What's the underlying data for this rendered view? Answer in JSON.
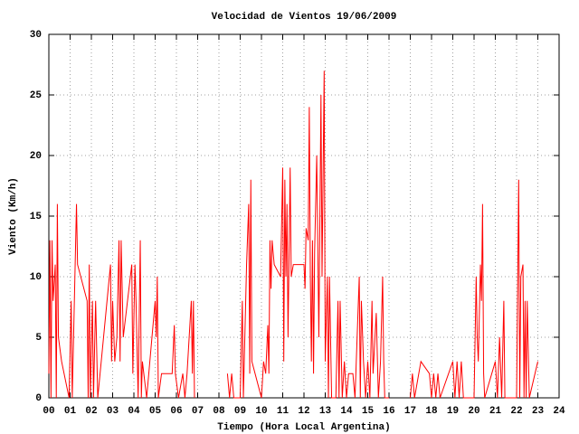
{
  "chart_data": {
    "type": "line",
    "title": "Velocidad de Vientos 19/06/2009",
    "x_label": "Tiempo (Hora Local Argentina)",
    "y_label": "Viento (Km/h)",
    "xlim": [
      0,
      24
    ],
    "ylim": [
      0,
      30
    ],
    "xticks": [
      {
        "value": 0,
        "label": "00"
      },
      {
        "value": 1,
        "label": "01"
      },
      {
        "value": 2,
        "label": "02"
      },
      {
        "value": 3,
        "label": "03"
      },
      {
        "value": 4,
        "label": "04"
      },
      {
        "value": 5,
        "label": "05"
      },
      {
        "value": 6,
        "label": "06"
      },
      {
        "value": 7,
        "label": "07"
      },
      {
        "value": 8,
        "label": "08"
      },
      {
        "value": 9,
        "label": "09"
      },
      10,
      11,
      12,
      13,
      14,
      15,
      16,
      17,
      18,
      19,
      20,
      21,
      22,
      23,
      24
    ],
    "yticks": [
      0,
      5,
      10,
      15,
      20,
      25,
      30
    ],
    "grid": true,
    "x": [
      0,
      0.05,
      0.1,
      0.15,
      0.2,
      0.3,
      0.35,
      0.4,
      0.45,
      0.6,
      0.95,
      1.05,
      1.1,
      1.2,
      1.3,
      1.35,
      1.8,
      1.85,
      1.9,
      1.95,
      2.05,
      2.1,
      2.2,
      2.3,
      2.9,
      2.95,
      3.0,
      3.1,
      3.2,
      3.3,
      3.35,
      3.4,
      3.5,
      3.9,
      3.95,
      4.05,
      4.1,
      4.2,
      4.3,
      4.35,
      4.4,
      4.6,
      5.0,
      5.05,
      5.1,
      5.15,
      5.3,
      5.8,
      5.9,
      5.95,
      6.1,
      6.3,
      6.4,
      6.5,
      6.7,
      6.75,
      6.8,
      6.85,
      7.5,
      8.4,
      8.5,
      8.6,
      8.7,
      9.0,
      9.1,
      9.15,
      9.3,
      9.4,
      9.45,
      9.5,
      9.55,
      10.0,
      10.1,
      10.2,
      10.3,
      10.35,
      10.4,
      10.45,
      10.5,
      10.6,
      10.9,
      11.0,
      11.05,
      11.1,
      11.15,
      11.2,
      11.25,
      11.35,
      11.4,
      11.5,
      12.0,
      12.05,
      12.1,
      12.2,
      12.25,
      12.3,
      12.35,
      12.4,
      12.45,
      12.5,
      12.6,
      12.7,
      12.8,
      12.85,
      12.95,
      13.0,
      13.1,
      13.15,
      13.2,
      13.3,
      13.5,
      13.6,
      13.65,
      13.7,
      13.8,
      13.9,
      14.0,
      14.1,
      14.3,
      14.4,
      14.6,
      14.65,
      14.7,
      14.8,
      14.9,
      15.0,
      15.1,
      15.2,
      15.25,
      15.4,
      15.5,
      15.6,
      15.7,
      15.75,
      15.8,
      16.0,
      16.5,
      17.0,
      17.1,
      17.2,
      17.5,
      17.9,
      18.0,
      18.1,
      18.2,
      18.3,
      18.4,
      19.0,
      19.1,
      19.2,
      19.3,
      19.4,
      19.5,
      20.0,
      20.1,
      20.15,
      20.2,
      20.3,
      20.35,
      20.4,
      20.45,
      20.5,
      21.0,
      21.1,
      21.2,
      21.3,
      21.4,
      21.45,
      21.5,
      22.0,
      22.1,
      22.15,
      22.2,
      22.3,
      22.35,
      22.4,
      22.45,
      22.5,
      22.6,
      23.0
    ],
    "series": [
      {
        "color": "#ff0000",
        "values": [
          2,
          13,
          0,
          13,
          8,
          11,
          0,
          16,
          5,
          3,
          0,
          8,
          0,
          8,
          16,
          11,
          8,
          0,
          11,
          0,
          8,
          0,
          8,
          0,
          11,
          3,
          8,
          3,
          5,
          13,
          3,
          13,
          5,
          11,
          2,
          11,
          8,
          0,
          13,
          0,
          3,
          0,
          8,
          5,
          10,
          0,
          2,
          2,
          6,
          2,
          0,
          2,
          0,
          2,
          8,
          2,
          8,
          0,
          null,
          2,
          0,
          2,
          0,
          0,
          8,
          0,
          11,
          16,
          2,
          18,
          3,
          0,
          3,
          2,
          6,
          2,
          13,
          9,
          13,
          11,
          10,
          19,
          3,
          18,
          10,
          16,
          5,
          19,
          10,
          11,
          11,
          9,
          14,
          13,
          24,
          10,
          3,
          13,
          2,
          12,
          20,
          5,
          25,
          10,
          27,
          3,
          10,
          0,
          10,
          0,
          0,
          8,
          0,
          8,
          0,
          3,
          0,
          2,
          2,
          0,
          10,
          0,
          8,
          3,
          0,
          3,
          0,
          8,
          2,
          7,
          0,
          3,
          10,
          3,
          0,
          0,
          null,
          0,
          2,
          0,
          3,
          2,
          0,
          2,
          0,
          2,
          0,
          3,
          0,
          3,
          0,
          3,
          0,
          0,
          10,
          5,
          3,
          11,
          8,
          16,
          2,
          0,
          3,
          0,
          5,
          0,
          8,
          0,
          0,
          0,
          18,
          0,
          10,
          11,
          0,
          8,
          0,
          8,
          0,
          3
        ]
      }
    ]
  }
}
